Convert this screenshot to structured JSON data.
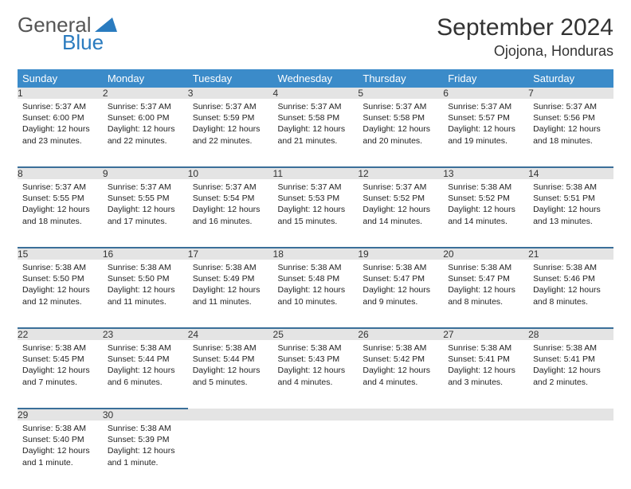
{
  "logo": {
    "text1": "General",
    "text2": "Blue",
    "icon_color": "#2a7bbf"
  },
  "title": "September 2024",
  "location": "Ojojona, Honduras",
  "header_bg": "#3b8bc9",
  "daynum_bg": "#e4e4e4",
  "rule_color": "#3b6f99",
  "weekdays": [
    "Sunday",
    "Monday",
    "Tuesday",
    "Wednesday",
    "Thursday",
    "Friday",
    "Saturday"
  ],
  "weeks": [
    [
      {
        "n": "1",
        "sr": "5:37 AM",
        "ss": "6:00 PM",
        "dl": "12 hours and 23 minutes."
      },
      {
        "n": "2",
        "sr": "5:37 AM",
        "ss": "6:00 PM",
        "dl": "12 hours and 22 minutes."
      },
      {
        "n": "3",
        "sr": "5:37 AM",
        "ss": "5:59 PM",
        "dl": "12 hours and 22 minutes."
      },
      {
        "n": "4",
        "sr": "5:37 AM",
        "ss": "5:58 PM",
        "dl": "12 hours and 21 minutes."
      },
      {
        "n": "5",
        "sr": "5:37 AM",
        "ss": "5:58 PM",
        "dl": "12 hours and 20 minutes."
      },
      {
        "n": "6",
        "sr": "5:37 AM",
        "ss": "5:57 PM",
        "dl": "12 hours and 19 minutes."
      },
      {
        "n": "7",
        "sr": "5:37 AM",
        "ss": "5:56 PM",
        "dl": "12 hours and 18 minutes."
      }
    ],
    [
      {
        "n": "8",
        "sr": "5:37 AM",
        "ss": "5:55 PM",
        "dl": "12 hours and 18 minutes."
      },
      {
        "n": "9",
        "sr": "5:37 AM",
        "ss": "5:55 PM",
        "dl": "12 hours and 17 minutes."
      },
      {
        "n": "10",
        "sr": "5:37 AM",
        "ss": "5:54 PM",
        "dl": "12 hours and 16 minutes."
      },
      {
        "n": "11",
        "sr": "5:37 AM",
        "ss": "5:53 PM",
        "dl": "12 hours and 15 minutes."
      },
      {
        "n": "12",
        "sr": "5:37 AM",
        "ss": "5:52 PM",
        "dl": "12 hours and 14 minutes."
      },
      {
        "n": "13",
        "sr": "5:38 AM",
        "ss": "5:52 PM",
        "dl": "12 hours and 14 minutes."
      },
      {
        "n": "14",
        "sr": "5:38 AM",
        "ss": "5:51 PM",
        "dl": "12 hours and 13 minutes."
      }
    ],
    [
      {
        "n": "15",
        "sr": "5:38 AM",
        "ss": "5:50 PM",
        "dl": "12 hours and 12 minutes."
      },
      {
        "n": "16",
        "sr": "5:38 AM",
        "ss": "5:50 PM",
        "dl": "12 hours and 11 minutes."
      },
      {
        "n": "17",
        "sr": "5:38 AM",
        "ss": "5:49 PM",
        "dl": "12 hours and 11 minutes."
      },
      {
        "n": "18",
        "sr": "5:38 AM",
        "ss": "5:48 PM",
        "dl": "12 hours and 10 minutes."
      },
      {
        "n": "19",
        "sr": "5:38 AM",
        "ss": "5:47 PM",
        "dl": "12 hours and 9 minutes."
      },
      {
        "n": "20",
        "sr": "5:38 AM",
        "ss": "5:47 PM",
        "dl": "12 hours and 8 minutes."
      },
      {
        "n": "21",
        "sr": "5:38 AM",
        "ss": "5:46 PM",
        "dl": "12 hours and 8 minutes."
      }
    ],
    [
      {
        "n": "22",
        "sr": "5:38 AM",
        "ss": "5:45 PM",
        "dl": "12 hours and 7 minutes."
      },
      {
        "n": "23",
        "sr": "5:38 AM",
        "ss": "5:44 PM",
        "dl": "12 hours and 6 minutes."
      },
      {
        "n": "24",
        "sr": "5:38 AM",
        "ss": "5:44 PM",
        "dl": "12 hours and 5 minutes."
      },
      {
        "n": "25",
        "sr": "5:38 AM",
        "ss": "5:43 PM",
        "dl": "12 hours and 4 minutes."
      },
      {
        "n": "26",
        "sr": "5:38 AM",
        "ss": "5:42 PM",
        "dl": "12 hours and 4 minutes."
      },
      {
        "n": "27",
        "sr": "5:38 AM",
        "ss": "5:41 PM",
        "dl": "12 hours and 3 minutes."
      },
      {
        "n": "28",
        "sr": "5:38 AM",
        "ss": "5:41 PM",
        "dl": "12 hours and 2 minutes."
      }
    ],
    [
      {
        "n": "29",
        "sr": "5:38 AM",
        "ss": "5:40 PM",
        "dl": "12 hours and 1 minute."
      },
      {
        "n": "30",
        "sr": "5:38 AM",
        "ss": "5:39 PM",
        "dl": "12 hours and 1 minute."
      },
      null,
      null,
      null,
      null,
      null
    ]
  ]
}
